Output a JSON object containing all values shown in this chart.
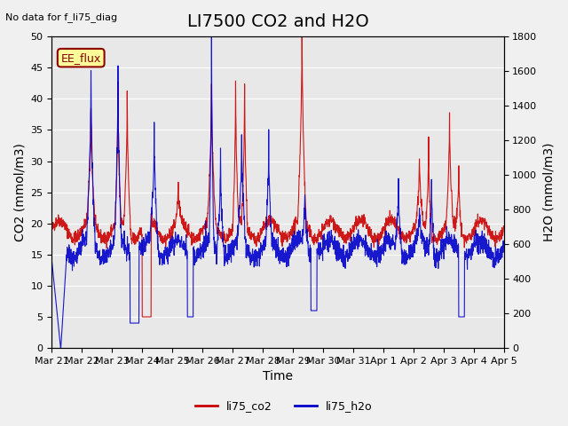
{
  "title": "LI7500 CO2 and H2O",
  "top_left_text": "No data for f_li75_diag",
  "xlabel": "Time",
  "ylabel_left": "CO2 (mmol/m3)",
  "ylabel_right": "H2O (mmol/m3)",
  "ylim_left": [
    0,
    50
  ],
  "ylim_right": [
    0,
    1800
  ],
  "yticks_left": [
    0,
    5,
    10,
    15,
    20,
    25,
    30,
    35,
    40,
    45,
    50
  ],
  "yticks_right": [
    0,
    200,
    400,
    600,
    800,
    1000,
    1200,
    1400,
    1600,
    1800
  ],
  "xtick_labels": [
    "Mar 21",
    "Mar 22",
    "Mar 23",
    "Mar 24",
    "Mar 25",
    "Mar 26",
    "Mar 27",
    "Mar 28",
    "Mar 29",
    "Mar 30",
    "Mar 31",
    "Apr 1",
    "Apr 2",
    "Apr 3",
    "Apr 4",
    "Apr 5"
  ],
  "color_co2": "#cc0000",
  "color_h2o": "#0000cc",
  "color_bg": "#e8e8e8",
  "color_plot_bg": "#f0f0f0",
  "legend_box_color": "#ffff99",
  "legend_box_text": "EE_flux",
  "legend_entries": [
    "li75_co2",
    "li75_h2o"
  ],
  "title_fontsize": 14,
  "label_fontsize": 10,
  "tick_fontsize": 8
}
